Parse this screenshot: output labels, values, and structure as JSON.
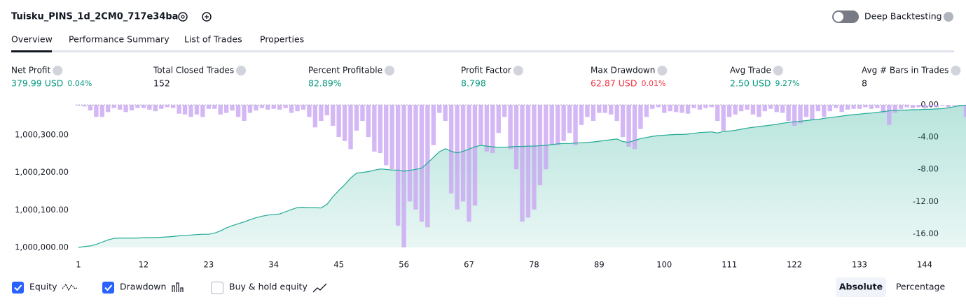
{
  "header": {
    "title": "Tuisku_PINS_1d_2CM0_717e34ba",
    "deep_backtesting": "Deep Backtesting"
  },
  "tabs": [
    "Overview",
    "Performance Summary",
    "List of Trades",
    "Properties"
  ],
  "metrics": [
    {
      "label": "Net Profit",
      "value": "379.99 USD",
      "percent": "0.04%",
      "color": "#089981"
    },
    {
      "label": "Total Closed Trades",
      "value": "152",
      "color": "#131722"
    },
    {
      "label": "Percent Profitable",
      "value": "82.89%",
      "color": "#089981"
    },
    {
      "label": "Profit Factor",
      "value": "8.798",
      "color": "#089981"
    },
    {
      "label": "Max Drawdown",
      "value": "62.87 USD",
      "percent": "0.01%",
      "color": "#f23645"
    },
    {
      "label": "Avg Trade",
      "value": "2.50 USD",
      "percent": "9.27%",
      "color": "#089981"
    },
    {
      "label": "Avg # Bars in Trades",
      "value": "8",
      "color": "#131722"
    }
  ],
  "chart_data": {
    "type": "line",
    "x": [
      1,
      2,
      3,
      4,
      5,
      6,
      7,
      8,
      9,
      10,
      11,
      12,
      13,
      14,
      15,
      16,
      17,
      18,
      19,
      20,
      21,
      22,
      23,
      24,
      25,
      26,
      27,
      28,
      29,
      30,
      31,
      32,
      33,
      34,
      35,
      36,
      37,
      38,
      39,
      40,
      41,
      42,
      43,
      44,
      45,
      46,
      47,
      48,
      49,
      50,
      51,
      52,
      53,
      54,
      55,
      56,
      57,
      58,
      59,
      60,
      61,
      62,
      63,
      64,
      65,
      66,
      67,
      68,
      69,
      70,
      71,
      72,
      73,
      74,
      75,
      76,
      77,
      78,
      79,
      80,
      81,
      82,
      83,
      84,
      85,
      86,
      87,
      88,
      89,
      90,
      91,
      92,
      93,
      94,
      95,
      96,
      97,
      98,
      99,
      100,
      101,
      102,
      103,
      104,
      105,
      106,
      107,
      108,
      109,
      110,
      111,
      112,
      113,
      114,
      115,
      116,
      117,
      118,
      119,
      120,
      121,
      122,
      123,
      124,
      125,
      126,
      127,
      128,
      129,
      130,
      131,
      132,
      133,
      134,
      135,
      136,
      137,
      138,
      139,
      140,
      141,
      142,
      143,
      144,
      145,
      146,
      147,
      148,
      149,
      150,
      151,
      152
    ],
    "xlim": [
      1,
      152
    ],
    "xticks": [
      1,
      12,
      23,
      34,
      45,
      56,
      67,
      78,
      89,
      100,
      111,
      122,
      133,
      144
    ],
    "ylim": [
      1000000,
      1000380
    ],
    "yticks": [
      {
        "value": 1000000,
        "label": "1,000,000.00"
      },
      {
        "value": 1000100,
        "label": "1,000,100.00"
      },
      {
        "value": 1000200,
        "label": "1,000,200.00"
      },
      {
        "value": 1000300,
        "label": "1,000,300.00"
      }
    ],
    "y2lim": [
      -17.7,
      0
    ],
    "y2ticks": [
      {
        "value": 0,
        "label": "0.00"
      },
      {
        "value": -4,
        "label": "-4.00"
      },
      {
        "value": -8,
        "label": "-8.00"
      },
      {
        "value": -12,
        "label": "-12.00"
      },
      {
        "value": -16,
        "label": "-16.00"
      }
    ],
    "series": [
      {
        "name": "Equity",
        "color": "#22ab94",
        "values": [
          1000000,
          1000002,
          1000004,
          1000008,
          1000014,
          1000020,
          1000024,
          1000025,
          1000025,
          1000025,
          1000025,
          1000026,
          1000026,
          1000026,
          1000027,
          1000028,
          1000029,
          1000031,
          1000032,
          1000033,
          1000034,
          1000035,
          1000035,
          1000038,
          1000044,
          1000052,
          1000058,
          1000063,
          1000068,
          1000074,
          1000079,
          1000083,
          1000086,
          1000088,
          1000089,
          1000095,
          1000101,
          1000106,
          1000107,
          1000106,
          1000106,
          1000105,
          1000115,
          1000135,
          1000152,
          1000167,
          1000185,
          1000198,
          1000200,
          1000202,
          1000206,
          1000209,
          1000208,
          1000206,
          1000206,
          1000203,
          1000205,
          1000208,
          1000211,
          1000225,
          1000240,
          1000255,
          1000263,
          1000256,
          1000252,
          1000256,
          1000262,
          1000268,
          1000272,
          1000270,
          1000268,
          1000267,
          1000267,
          1000268,
          1000269,
          1000269,
          1000270,
          1000270,
          1000271,
          1000272,
          1000274,
          1000276,
          1000277,
          1000277,
          1000278,
          1000279,
          1000280,
          1000281,
          1000283,
          1000285,
          1000287,
          1000289,
          1000282,
          1000280,
          1000285,
          1000290,
          1000293,
          1000296,
          1000298,
          1000299,
          1000300,
          1000301,
          1000301,
          1000302,
          1000304,
          1000306,
          1000307,
          1000308,
          1000305,
          1000309,
          1000310,
          1000312,
          1000315,
          1000318,
          1000320,
          1000322,
          1000324,
          1000326,
          1000328,
          1000331,
          1000333,
          1000335,
          1000336,
          1000338,
          1000340,
          1000341,
          1000344,
          1000346,
          1000348,
          1000350,
          1000352,
          1000354,
          1000355,
          1000357,
          1000358,
          1000360,
          1000362,
          1000364,
          1000365,
          1000366,
          1000366,
          1000367,
          1000367,
          1000368,
          1000368,
          1000369,
          1000370,
          1000372,
          1000375,
          1000378,
          1000379,
          1000380
        ]
      },
      {
        "name": "Drawdown",
        "type": "bar",
        "axis": "y2",
        "color": "#c9a6f2",
        "values": [
          -0.1,
          -0.2,
          -0.7,
          -1.5,
          -1.5,
          -0.9,
          -0.4,
          -0.6,
          -0.9,
          -0.7,
          -0.4,
          -0.4,
          -0.6,
          -0.8,
          -0.5,
          -0.3,
          -0.4,
          -1.1,
          -1.2,
          -1.5,
          -1.2,
          -1.5,
          -0.5,
          -0.5,
          -1.2,
          -1.0,
          -0.7,
          -1.5,
          -2.0,
          -1.0,
          -0.7,
          -0.4,
          -0.6,
          -0.5,
          -0.6,
          -0.4,
          -1.0,
          -0.8,
          -0.6,
          -1.5,
          -2.8,
          -2.0,
          -1.3,
          -2.6,
          -4.0,
          -4.5,
          -5.5,
          -3.2,
          -2.0,
          -4.0,
          -5.8,
          -6.0,
          -7.5,
          -8.0,
          -15.0,
          -17.7,
          -12.0,
          -13.0,
          -14.5,
          -15.2,
          -5.0,
          -1.0,
          -2.0,
          -11.0,
          -13.0,
          -12.0,
          -14.5,
          -12.5,
          -5.0,
          -5.8,
          -6.0,
          -3.5,
          -1.5,
          -5.5,
          -8.0,
          -14.5,
          -14.0,
          -13.0,
          -10.0,
          -8.0,
          -5.0,
          -5.0,
          -4.5,
          -3.5,
          -5.0,
          -2.5,
          -1.5,
          -2.0,
          -1.0,
          -1.0,
          -1.2,
          -2.0,
          -4.0,
          -5.2,
          -5.5,
          -3.0,
          -1.5,
          -0.5,
          -0.3,
          -1.0,
          -0.8,
          -0.9,
          -1.0,
          -1.1,
          -0.4,
          -0.6,
          -0.4,
          -0.3,
          -2.0,
          -3.2,
          -1.5,
          -1.2,
          -0.8,
          -0.6,
          -1.2,
          -1.5,
          -0.8,
          -0.5,
          -0.9,
          -1.0,
          -2.0,
          -2.6,
          -2.3,
          -1.5,
          -1.8,
          -0.8,
          -1.5,
          -0.8,
          -0.4,
          -0.9,
          -0.6,
          -0.5,
          -0.5,
          -0.3,
          -0.5,
          -0.4,
          -1.0,
          -2.5,
          -1.0,
          -0.5,
          -0.3,
          -0.4,
          -0.3,
          -0.4,
          -0.2,
          -0.3,
          -0.1,
          -0.3,
          -0.1,
          -0.2,
          -1.5,
          -2.8
        ]
      }
    ]
  },
  "legend_options": {
    "buy_hold": "Buy & hold equity"
  },
  "view_modes": [
    "Absolute",
    "Percentage"
  ]
}
